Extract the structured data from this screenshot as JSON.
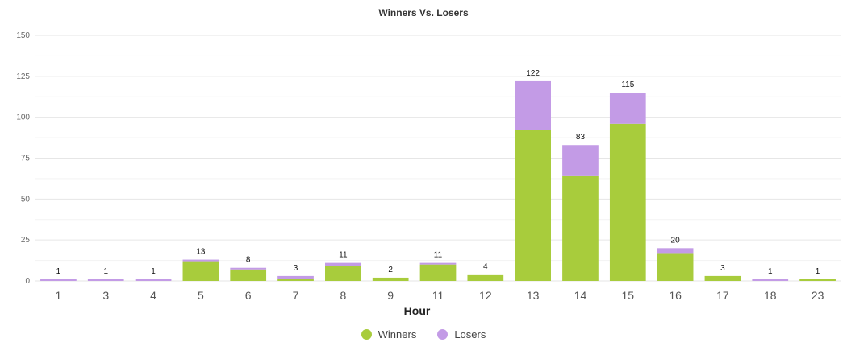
{
  "chart_data": {
    "type": "bar",
    "stacked": true,
    "title": "Winners Vs. Losers",
    "xlabel": "Hour",
    "ylabel": "",
    "ylim": [
      0,
      150
    ],
    "yticks": [
      0,
      25,
      50,
      75,
      100,
      125,
      150
    ],
    "categories": [
      "1",
      "3",
      "4",
      "5",
      "6",
      "7",
      "8",
      "9",
      "11",
      "12",
      "13",
      "14",
      "15",
      "16",
      "17",
      "18",
      "23"
    ],
    "series": [
      {
        "name": "Winners",
        "color": "#a8cc3c",
        "values": [
          0,
          0,
          0,
          12,
          7,
          1,
          9,
          2,
          10,
          4,
          92,
          64,
          96,
          17,
          3,
          0,
          1
        ]
      },
      {
        "name": "Losers",
        "color": "#c39be6",
        "values": [
          1,
          1,
          1,
          1,
          1,
          2,
          2,
          0,
          1,
          0,
          30,
          19,
          19,
          3,
          0,
          1,
          0
        ]
      }
    ],
    "totals": [
      1,
      1,
      1,
      13,
      8,
      3,
      11,
      2,
      11,
      4,
      122,
      83,
      115,
      20,
      3,
      1,
      1
    ],
    "grid": true,
    "legend": "bottom-center"
  }
}
